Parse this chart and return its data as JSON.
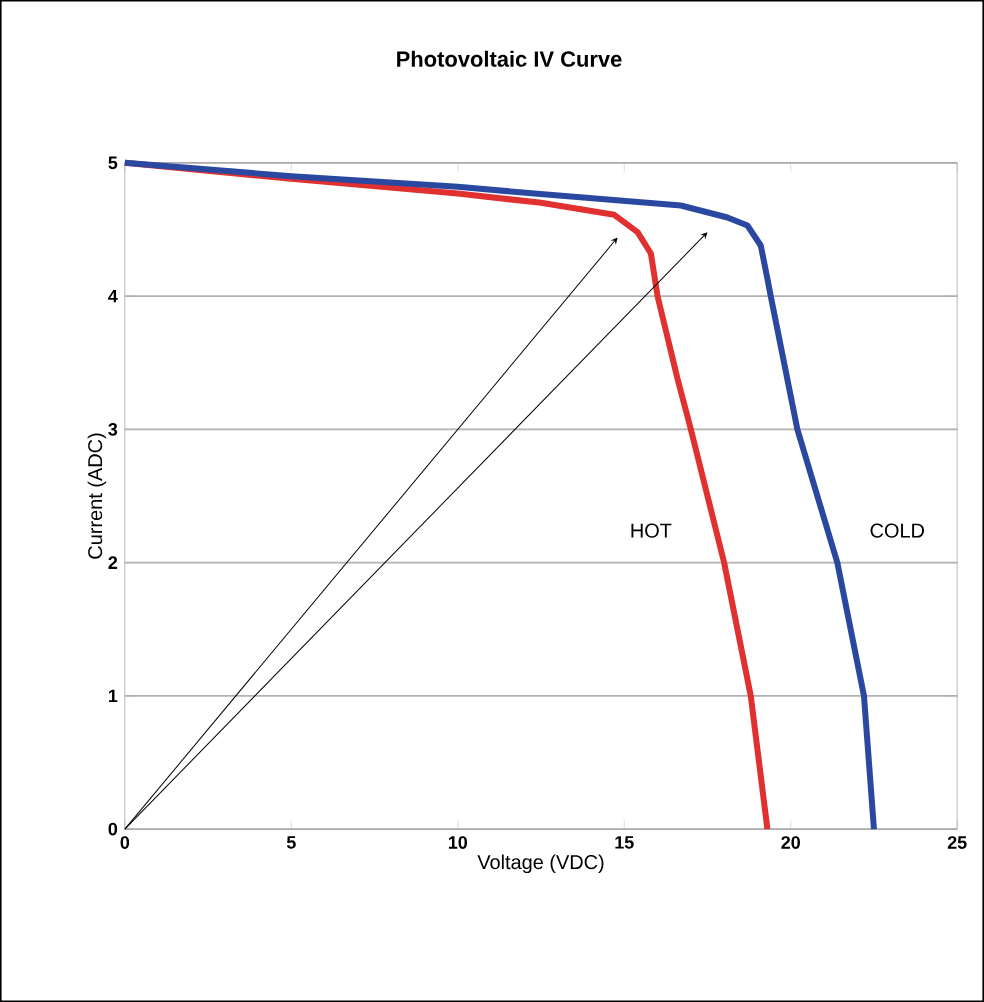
{
  "chart_data": {
    "type": "line",
    "title": "Photovoltaic IV Curve",
    "xlabel": "Voltage (VDC)",
    "ylabel": "Current (ADC)",
    "xlim": [
      0,
      25
    ],
    "ylim": [
      0,
      5
    ],
    "xticks": [
      0,
      5,
      10,
      15,
      20,
      25
    ],
    "yticks": [
      0,
      1,
      2,
      3,
      4,
      5
    ],
    "grid": "y",
    "legend": false,
    "marker": "none",
    "line_style": "solid",
    "series": [
      {
        "name": "HOT",
        "color": "#e03030",
        "x": [
          0,
          5,
          10,
          12.5,
          14.7,
          15.4,
          15.8,
          16.0,
          16.6,
          17.0,
          18.0,
          18.8,
          19.3
        ],
        "values": [
          5,
          4.88,
          4.77,
          4.7,
          4.61,
          4.48,
          4.32,
          4.0,
          3.38,
          3.0,
          2.0,
          1.0,
          0
        ]
      },
      {
        "name": "COLD",
        "color": "#2a48a0",
        "x": [
          0,
          5,
          10,
          12.3,
          16.7,
          18.1,
          18.7,
          19.1,
          19.3,
          19.4,
          20.2,
          21.4,
          22.2,
          22.5
        ],
        "values": [
          5,
          4.9,
          4.82,
          4.77,
          4.68,
          4.59,
          4.53,
          4.38,
          4.13,
          4.0,
          3.0,
          2.0,
          1.0,
          0
        ]
      }
    ]
  }
}
